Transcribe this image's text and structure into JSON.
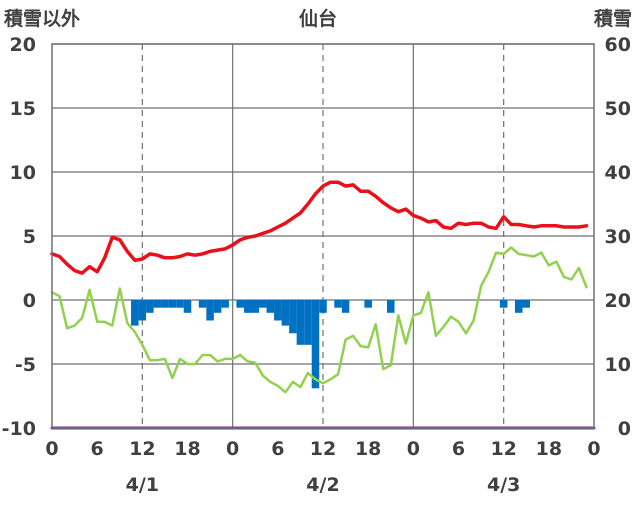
{
  "chart_data": {
    "type": "line",
    "title": "仙台",
    "left_axis_label": "積雪以外",
    "right_axis_label": "積雪",
    "left_ylim": [
      -10,
      20
    ],
    "right_ylim": [
      0,
      60
    ],
    "left_ticks": [
      "20",
      "15",
      "10",
      "5",
      "0",
      "-5",
      "-10"
    ],
    "right_ticks": [
      "60",
      "50",
      "40",
      "30",
      "20",
      "10",
      "0"
    ],
    "x_range_hours": [
      0,
      72
    ],
    "x_ticks": [
      "0",
      "6",
      "12",
      "18",
      "0",
      "6",
      "12",
      "18",
      "0",
      "6",
      "12",
      "18",
      "0"
    ],
    "date_labels": [
      "4/1",
      "4/2",
      "4/3"
    ],
    "grid": true,
    "colors": {
      "temperature": "#e8101a",
      "dewpoint": "#92d050",
      "bars": "#0070c0",
      "snow": "#7030a0",
      "grid_solid": "#707070",
      "grid_dash": "#707070",
      "text": "#404040"
    },
    "series": [
      {
        "kind": "line",
        "axis": "left",
        "color": "#e8101a",
        "x": [
          0,
          1,
          2,
          3,
          4,
          5,
          6,
          7,
          8,
          9,
          10,
          11,
          12,
          13,
          14,
          15,
          16,
          17,
          18,
          19,
          20,
          21,
          22,
          23,
          24,
          25,
          26,
          27,
          28,
          29,
          30,
          31,
          32,
          33,
          34,
          35,
          36,
          37,
          38,
          39,
          40,
          41,
          42,
          43,
          44,
          45,
          46,
          47,
          48,
          49,
          50,
          51,
          52,
          53,
          54,
          55,
          56,
          57,
          58,
          59,
          60,
          61,
          62,
          63,
          64,
          65,
          66,
          67,
          68,
          69,
          70,
          71
        ],
        "values": [
          3.6,
          3.4,
          2.8,
          2.3,
          2.1,
          2.6,
          2.2,
          3.3,
          4.9,
          4.7,
          3.8,
          3.1,
          3.2,
          3.6,
          3.5,
          3.3,
          3.3,
          3.4,
          3.6,
          3.5,
          3.6,
          3.8,
          3.9,
          4.0,
          4.3,
          4.7,
          4.9,
          5.0,
          5.2,
          5.4,
          5.7,
          6.0,
          6.4,
          6.8,
          7.5,
          8.3,
          8.9,
          9.2,
          9.2,
          8.9,
          9.0,
          8.5,
          8.5,
          8.1,
          7.6,
          7.2,
          6.9,
          7.1,
          6.6,
          6.4,
          6.1,
          6.2,
          5.7,
          5.6,
          6.0,
          5.9,
          6.0,
          6.0,
          5.7,
          5.6,
          6.5,
          5.9,
          5.9,
          5.8,
          5.7,
          5.8,
          5.8,
          5.8,
          5.7,
          5.7,
          5.7,
          5.8
        ]
      },
      {
        "kind": "line",
        "axis": "left",
        "color": "#92d050",
        "x": [
          0,
          1,
          2,
          3,
          4,
          5,
          6,
          7,
          8,
          9,
          10,
          11,
          12,
          13,
          14,
          15,
          16,
          17,
          18,
          19,
          20,
          21,
          22,
          23,
          24,
          25,
          26,
          27,
          28,
          29,
          30,
          31,
          32,
          33,
          34,
          35,
          36,
          37,
          38,
          39,
          40,
          41,
          42,
          43,
          44,
          45,
          46,
          47,
          48,
          49,
          50,
          51,
          52,
          53,
          54,
          55,
          56,
          57,
          58,
          59,
          60,
          61,
          62,
          63,
          64,
          65,
          66,
          67,
          68,
          69,
          70,
          71
        ],
        "values": [
          0.6,
          0.3,
          -2.2,
          -2.0,
          -1.4,
          0.8,
          -1.7,
          -1.7,
          -2.0,
          0.9,
          -1.8,
          -2.5,
          -3.5,
          -4.7,
          -4.7,
          -4.6,
          -6.1,
          -4.6,
          -5.0,
          -5.0,
          -4.3,
          -4.3,
          -4.8,
          -4.6,
          -4.6,
          -4.3,
          -4.8,
          -4.9,
          -5.9,
          -6.4,
          -6.7,
          -7.2,
          -6.4,
          -6.8,
          -5.7,
          -6.2,
          -6.5,
          -6.2,
          -5.8,
          -3.1,
          -2.8,
          -3.6,
          -3.7,
          -1.9,
          -5.4,
          -5.1,
          -1.2,
          -3.4,
          -1.2,
          -1.0,
          0.6,
          -2.8,
          -2.1,
          -1.3,
          -1.7,
          -2.6,
          -1.6,
          1.1,
          2.2,
          3.7,
          3.6,
          4.1,
          3.6,
          3.5,
          3.4,
          3.7,
          2.7,
          3.0,
          1.8,
          1.6,
          2.5,
          1.0
        ]
      },
      {
        "kind": "bar",
        "axis": "left",
        "color": "#0070c0",
        "x": [
          11,
          12,
          13,
          14,
          15,
          16,
          17,
          18,
          19,
          20,
          21,
          22,
          23,
          24,
          25,
          26,
          27,
          28,
          29,
          30,
          31,
          32,
          33,
          34,
          35,
          36,
          37,
          38,
          39,
          40,
          41,
          42,
          43,
          44,
          45,
          46,
          47,
          48,
          49,
          50,
          51,
          52,
          53,
          54,
          55,
          56,
          57,
          58,
          59,
          60,
          61,
          62,
          63,
          64,
          65,
          66,
          67,
          68,
          69,
          70,
          71
        ],
        "values": [
          -2.0,
          -1.6,
          -1.0,
          -0.6,
          -0.6,
          -0.6,
          -0.6,
          -1.0,
          0,
          -0.6,
          -1.6,
          -1.0,
          -0.6,
          0,
          -0.6,
          -1.0,
          -1.0,
          -0.6,
          -1.0,
          -1.6,
          -2.0,
          -2.6,
          -3.5,
          -3.5,
          -6.9,
          -1.0,
          0,
          -0.6,
          -1.0,
          0,
          0,
          -0.6,
          0,
          0,
          -1.0,
          0,
          0,
          0,
          0,
          0,
          0,
          0,
          0,
          0,
          0,
          0,
          0,
          0,
          0,
          -0.6,
          0,
          -1.0,
          -0.6,
          0,
          0,
          0,
          0,
          0,
          0,
          0,
          0
        ]
      },
      {
        "kind": "line",
        "axis": "right",
        "color": "#7030a0",
        "x": [
          0,
          72
        ],
        "values": [
          0,
          0
        ]
      }
    ]
  }
}
